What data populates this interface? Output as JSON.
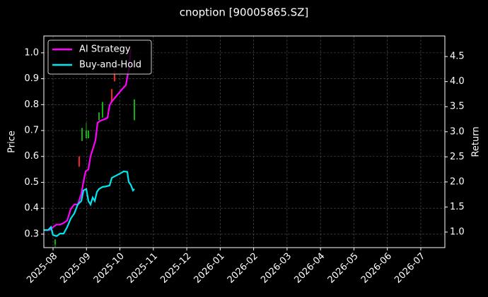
{
  "chart_data": {
    "type": "line",
    "title": "cnoption [90005865.SZ]",
    "ylabel": "Price",
    "y2label": "Return",
    "xlim": [
      -0.275,
      11.72
    ],
    "xticks": [
      {
        "value": 0,
        "label": "2025-08"
      },
      {
        "value": 1,
        "label": "2025-09"
      },
      {
        "value": 2,
        "label": "2025-10"
      },
      {
        "value": 3,
        "label": "2025-11"
      },
      {
        "value": 4,
        "label": "2025-12"
      },
      {
        "value": 5,
        "label": "2026-01"
      },
      {
        "value": 6,
        "label": "2026-02"
      },
      {
        "value": 7,
        "label": "2026-03"
      },
      {
        "value": 8,
        "label": "2026-04"
      },
      {
        "value": 9,
        "label": "2026-05"
      },
      {
        "value": 10,
        "label": "2026-06"
      },
      {
        "value": 11,
        "label": "2026-07"
      }
    ],
    "ylim": [
      0.248,
      1.065
    ],
    "yticks": [
      0.3,
      0.4,
      0.5,
      0.6,
      0.7,
      0.8,
      0.9,
      {
        "value": 1,
        "label": "1.0"
      }
    ],
    "y2lim": [
      0.69,
      4.91
    ],
    "y2ticks": [
      {
        "value": 1,
        "label": "1.0"
      },
      1.5,
      {
        "value": 2,
        "label": "2.0"
      },
      2.5,
      {
        "value": 3,
        "label": "3.0"
      },
      3.5,
      {
        "value": 4,
        "label": "4.0"
      },
      4.5
    ],
    "grid": true,
    "legend": "upper left",
    "candles": {
      "up_color": "#ff2020",
      "down_color": "#10b010",
      "x": [
        0.063,
        0.782,
        0.867,
        0.994,
        1.058,
        1.375,
        1.481,
        1.756,
        1.84,
        2.433
      ],
      "open": [
        0.28,
        0.56,
        0.71,
        0.7,
        0.7,
        0.77,
        0.81,
        0.81,
        0.89,
        0.82
      ],
      "high": [
        0.28,
        0.6,
        0.71,
        0.73,
        0.7,
        0.77,
        0.81,
        0.86,
        0.93,
        0.82
      ],
      "low": [
        0.25,
        0.56,
        0.66,
        0.67,
        0.67,
        0.74,
        0.75,
        0.81,
        0.89,
        0.74
      ],
      "close": [
        0.26,
        0.6,
        0.66,
        0.67,
        0.67,
        0.74,
        0.75,
        0.86,
        0.93,
        0.74
      ]
    },
    "series": [
      {
        "name": "AI Strategy",
        "color": "#ff00ff",
        "axis": "y2",
        "x": [
          -0.275,
          -0.106,
          0,
          0.106,
          0.212,
          0.317,
          0.423,
          0.529,
          0.635,
          0.74,
          0.846,
          0.91,
          0.973,
          1.058,
          1.121,
          1.206,
          1.269,
          1.333,
          1.417,
          1.544,
          1.629,
          1.692,
          1.756,
          1.84,
          1.967,
          2.052,
          2.179,
          2.264,
          2.327
        ],
        "values": [
          1.04,
          1.04,
          1.1,
          1.15,
          1.15,
          1.18,
          1.23,
          1.46,
          1.55,
          1.55,
          1.76,
          2.0,
          2.21,
          2.25,
          2.51,
          2.69,
          2.83,
          3.18,
          3.22,
          3.25,
          3.28,
          3.53,
          3.6,
          3.67,
          3.77,
          3.84,
          3.93,
          4.24,
          4.66
        ]
      },
      {
        "name": "Buy-and-Hold",
        "color": "#00e5ee",
        "axis": "y2",
        "x": [
          -0.275,
          -0.148,
          -0.063,
          0,
          0.106,
          0.212,
          0.317,
          0.423,
          0.529,
          0.635,
          0.74,
          0.846,
          0.91,
          0.994,
          1.058,
          1.121,
          1.185,
          1.248,
          1.312,
          1.375,
          1.481,
          1.587,
          1.692,
          1.756,
          1.84,
          1.925,
          2.01,
          2.116,
          2.221,
          2.264,
          2.327,
          2.391,
          2.433
        ],
        "values": [
          1.04,
          1.04,
          1.1,
          0.94,
          0.92,
          0.97,
          0.97,
          1.1,
          1.27,
          1.37,
          1.55,
          1.62,
          1.83,
          1.86,
          1.62,
          1.55,
          1.69,
          1.62,
          1.8,
          1.86,
          1.9,
          1.91,
          1.93,
          2.08,
          2.11,
          2.14,
          2.17,
          2.21,
          2.2,
          2.0,
          1.94,
          1.83,
          1.86
        ]
      }
    ]
  }
}
